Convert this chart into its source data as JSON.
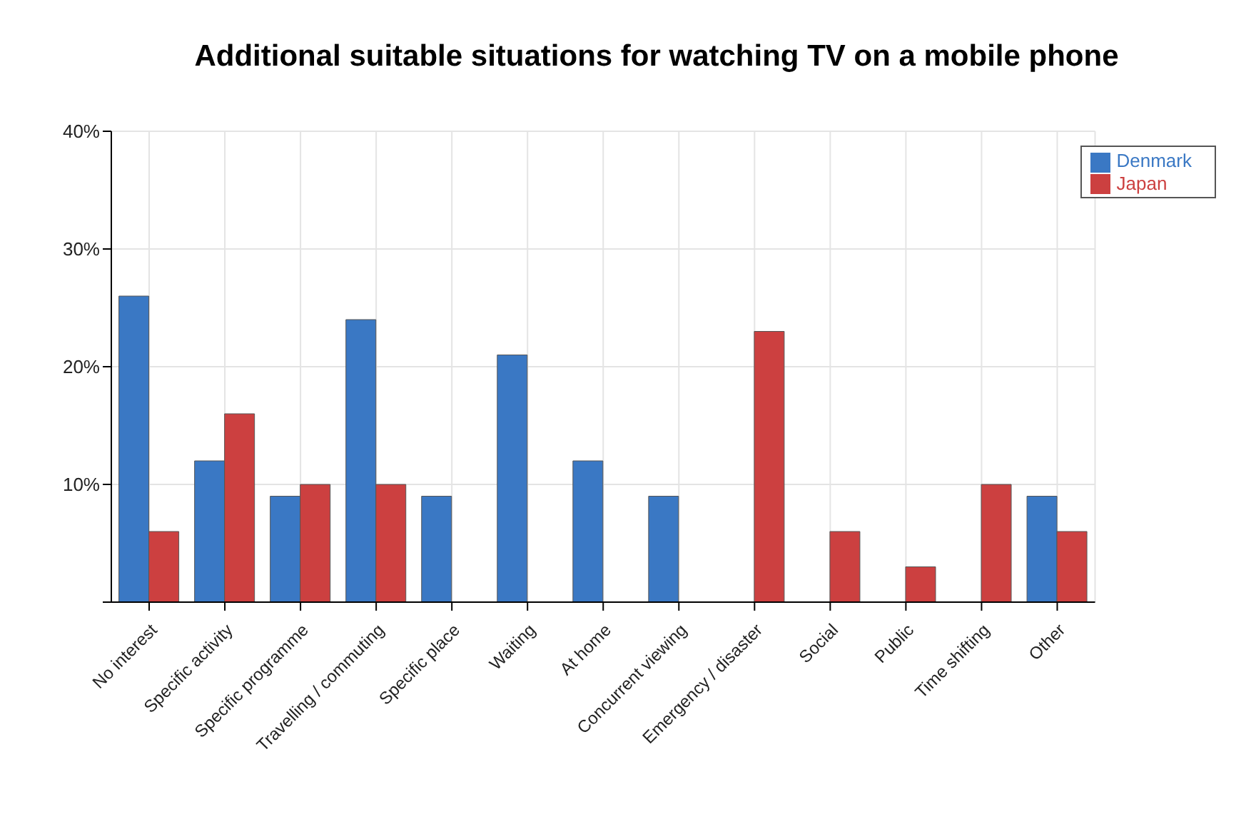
{
  "chart_data": {
    "type": "bar",
    "title": "Additional suitable situations for watching TV on a mobile phone",
    "categories": [
      "No interest",
      "Specific activity",
      "Specific programme",
      "Travelling / commuting",
      "Specific place",
      "Waiting",
      "At home",
      "Concurrent viewing",
      "Emergency / disaster",
      "Social",
      "Public",
      "Time shifting",
      "Other"
    ],
    "series": [
      {
        "name": "Denmark",
        "color": "#3a78c4",
        "values": [
          26,
          12,
          9,
          24,
          9,
          21,
          12,
          9,
          0,
          0,
          0,
          0,
          9
        ]
      },
      {
        "name": "Japan",
        "color": "#cc4040",
        "values": [
          6,
          16,
          10,
          10,
          0,
          0,
          0,
          0,
          23,
          6,
          3,
          10,
          6
        ]
      }
    ],
    "ylim": [
      0,
      40
    ],
    "yticks": [
      {
        "value": 0,
        "label": null
      },
      {
        "value": 10,
        "label": "10%"
      },
      {
        "value": 20,
        "label": "20%"
      },
      {
        "value": 30,
        "label": "30%"
      },
      {
        "value": 40,
        "label": "40%"
      }
    ],
    "grid": true,
    "legend": "top right"
  }
}
